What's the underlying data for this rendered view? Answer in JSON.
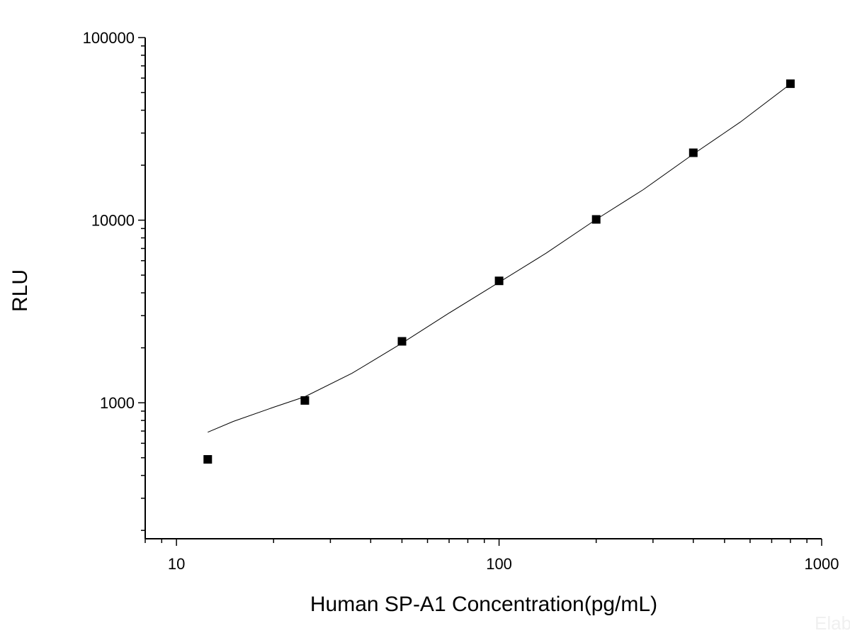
{
  "chart_data": {
    "type": "scatter",
    "xlabel": "Human SP-A1 Concentration(pg/mL)",
    "ylabel": "RLU",
    "x_scale": "log",
    "y_scale": "log",
    "xlim": [
      8,
      1000
    ],
    "ylim": [
      180,
      100000
    ],
    "x_ticks": [
      10,
      100,
      1000
    ],
    "x_tick_labels": [
      "10",
      "100",
      "1000"
    ],
    "y_ticks": [
      1000,
      10000,
      100000
    ],
    "y_tick_labels": [
      "1000",
      "10000",
      "100000"
    ],
    "grid": false,
    "series": [
      {
        "marker": "square",
        "color": "#000000",
        "x": [
          12.5,
          25,
          50,
          100,
          200,
          400,
          800
        ],
        "y": [
          490,
          1030,
          2170,
          4650,
          10100,
          23400,
          55900
        ]
      },
      {
        "line": "fit",
        "color": "#000000",
        "x": [
          12.5,
          15,
          20,
          25,
          35,
          50,
          70,
          100,
          140,
          200,
          280,
          400,
          560,
          800
        ],
        "y": [
          690,
          790,
          945,
          1080,
          1450,
          2120,
          3100,
          4570,
          6600,
          10100,
          14700,
          23000,
          34500,
          55700
        ]
      }
    ]
  },
  "watermark_text": "Elab"
}
